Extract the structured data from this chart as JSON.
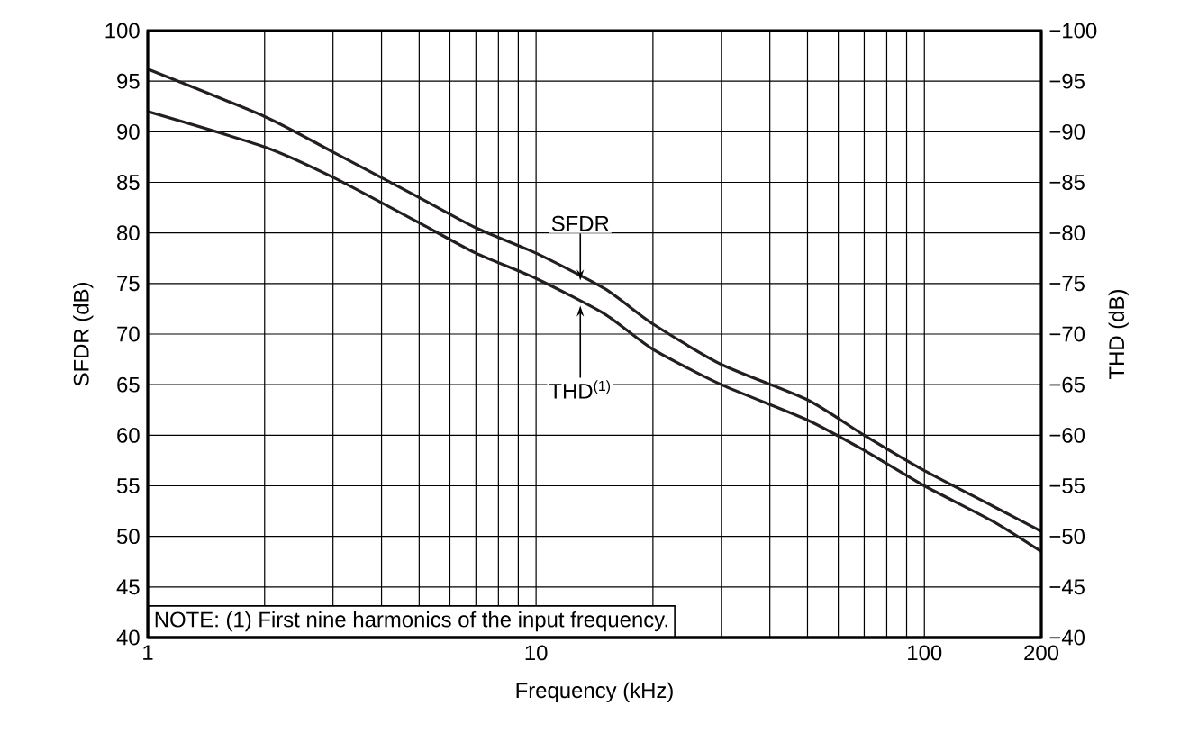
{
  "chart_data": {
    "type": "line",
    "xlabel": "Frequency (kHz)",
    "ylabel": "SFDR (dB)",
    "y2label": "THD (dB)",
    "log": "x",
    "grid": true,
    "marker": "none",
    "line_style": "solid",
    "x": [
      1,
      2,
      3,
      5,
      7,
      10,
      15,
      20,
      30,
      50,
      70,
      100,
      150,
      200
    ],
    "series": [
      {
        "name": null,
        "color": "#231f20",
        "values": [
          96.2,
          91.5,
          88,
          83.5,
          80.5,
          78,
          74.5,
          71,
          67,
          63.5,
          60,
          56.5,
          53,
          50.5
        ]
      },
      {
        "name": null,
        "color": "#231f20",
        "axis": "y2",
        "values": [
          -92,
          -88.5,
          -85.5,
          -81,
          -78,
          -75.5,
          -72,
          -68.5,
          -65,
          -61.5,
          -58.5,
          -55,
          -51.5,
          -48.5
        ]
      }
    ],
    "xlim": [
      1,
      200
    ],
    "xticks": [
      1,
      10,
      100,
      200
    ],
    "ylim": [
      40,
      100
    ],
    "yticks": [
      40,
      45,
      50,
      55,
      60,
      65,
      70,
      75,
      80,
      85,
      90,
      95,
      100
    ],
    "y2lim": [
      -40,
      -100
    ],
    "y2ticks": [
      {
        "value": -40,
        "label": "−40"
      },
      {
        "value": -45,
        "label": "−45"
      },
      {
        "value": -50,
        "label": "−50"
      },
      {
        "value": -55,
        "label": "−55"
      },
      {
        "value": -60,
        "label": "−60"
      },
      {
        "value": -65,
        "label": "−65"
      },
      {
        "value": -70,
        "label": "−70"
      },
      {
        "value": -75,
        "label": "−75"
      },
      {
        "value": -80,
        "label": "−80"
      },
      {
        "value": -85,
        "label": "−85"
      },
      {
        "value": -90,
        "label": "−90"
      },
      {
        "value": -95,
        "label": "−95"
      },
      {
        "value": -100,
        "label": "−100"
      }
    ],
    "annotations": [
      {
        "text": "SFDR",
        "x": 13,
        "y": 75.3
      },
      {
        "text": "THD$^{(1)}$",
        "x": 13,
        "y": 72.8
      },
      "NOTE: (1) First nine harmonics of the input frequency."
    ]
  }
}
